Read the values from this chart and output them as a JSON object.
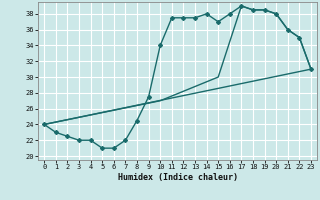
{
  "xlabel": "Humidex (Indice chaleur)",
  "background_color": "#cce8e8",
  "grid_color": "#ffffff",
  "line_color": "#1a6b6b",
  "xlim": [
    -0.5,
    23.5
  ],
  "ylim": [
    19.5,
    39.5
  ],
  "xticks": [
    0,
    1,
    2,
    3,
    4,
    5,
    6,
    7,
    8,
    9,
    10,
    11,
    12,
    13,
    14,
    15,
    16,
    17,
    18,
    19,
    20,
    21,
    22,
    23
  ],
  "yticks": [
    20,
    22,
    24,
    26,
    28,
    30,
    32,
    34,
    36,
    38
  ],
  "line1_x": [
    0,
    1,
    2,
    3,
    4,
    5,
    6,
    7,
    8,
    9,
    10,
    11,
    12,
    13,
    14,
    15,
    16,
    17,
    18,
    19,
    20,
    21,
    22,
    23
  ],
  "line1_y": [
    24,
    23,
    22.5,
    22,
    22,
    21,
    21,
    22,
    24.5,
    27.5,
    34,
    37.5,
    37.5,
    37.5,
    38,
    37,
    38,
    39,
    38.5,
    38.5,
    38,
    36,
    35,
    31
  ],
  "line2_x": [
    0,
    10,
    15,
    17,
    18,
    19,
    20,
    21,
    22,
    23
  ],
  "line2_y": [
    24,
    27,
    30,
    39,
    38.5,
    38.5,
    38,
    36,
    35,
    31
  ],
  "line3_x": [
    0,
    23
  ],
  "line3_y": [
    24,
    31
  ]
}
